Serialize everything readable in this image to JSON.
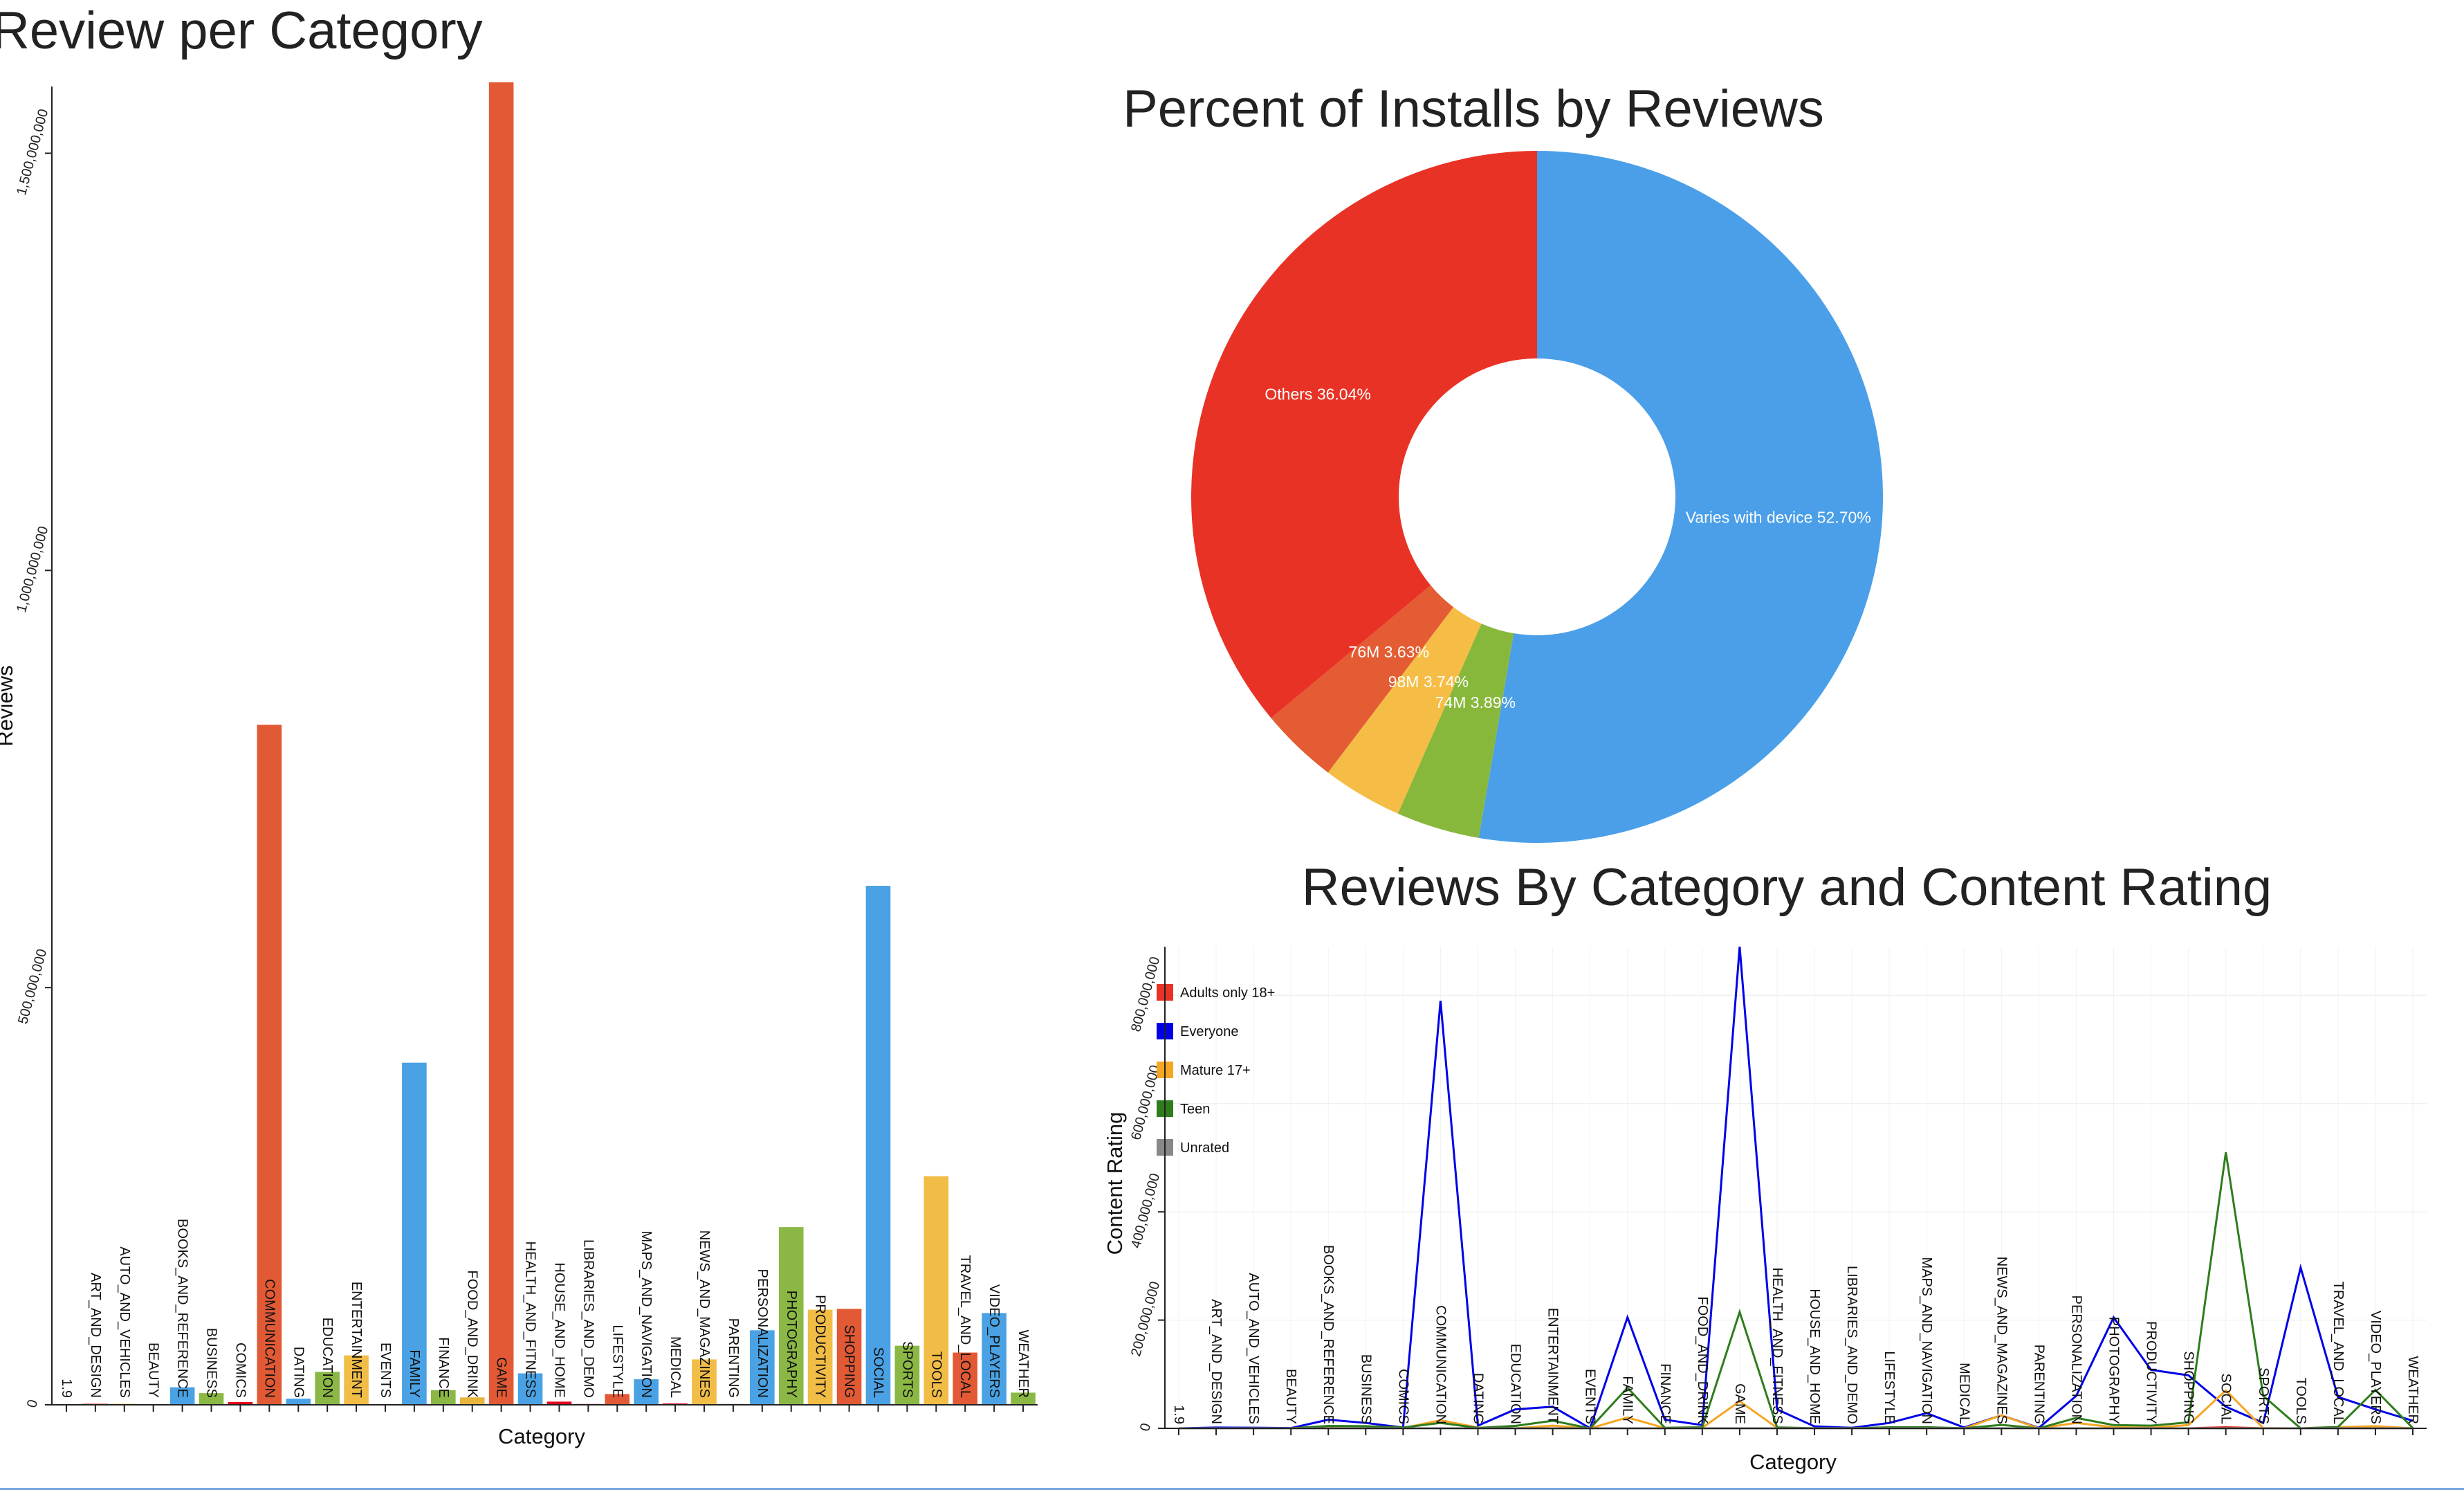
{
  "chart_data": [
    {
      "type": "bar",
      "title": "Review per Category",
      "xlabel": "Category",
      "ylabel": "Reviews",
      "ylim": [
        0,
        1580000000
      ],
      "yticks": [
        0,
        500000000,
        1000000000,
        1500000000
      ],
      "ytick_labels": [
        "0",
        "500,000,000",
        "1,000,000,000",
        "1,500,000,000"
      ],
      "categories": [
        "1.9",
        "ART_AND_DESIGN",
        "AUTO_AND_VEHICLES",
        "BEAUTY",
        "BOOKS_AND_REFERENCE",
        "BUSINESS",
        "COMICS",
        "COMMUNICATION",
        "DATING",
        "EDUCATION",
        "ENTERTAINMENT",
        "EVENTS",
        "FAMILY",
        "FINANCE",
        "FOOD_AND_DRINK",
        "GAME",
        "HEALTH_AND_FITNESS",
        "HOUSE_AND_HOME",
        "LIBRARIES_AND_DEMO",
        "LIFESTYLE",
        "MAPS_AND_NAVIGATION",
        "MEDICAL",
        "NEWS_AND_MAGAZINES",
        "PARENTING",
        "PERSONALIZATION",
        "PHOTOGRAPHY",
        "PRODUCTIVITY",
        "SHOPPING",
        "SOCIAL",
        "SPORTS",
        "TOOLS",
        "TRAVEL_AND_LOCAL",
        "VIDEO_PLAYERS",
        "WEATHER"
      ],
      "values": [
        0,
        1400000,
        1200000,
        400000,
        21000000,
        14000000,
        3400000,
        815000000,
        7300000,
        39500000,
        59200000,
        160000,
        410000000,
        17500000,
        8900000,
        1585000000,
        37700000,
        3800000,
        1000000,
        12900000,
        30600000,
        1600000,
        54400000,
        960000,
        89300000,
        213000000,
        114000000,
        115000000,
        622000000,
        70800000,
        274000000,
        62600000,
        110000000,
        14600000
      ],
      "colors": [
        "#e5001c",
        "#e25a35",
        "#e7b43e",
        "#8bb844",
        "#4aa2e4",
        "#8bb844",
        "#e5001c",
        "#e25a35",
        "#4aa2e4",
        "#8bb844",
        "#f2bd46",
        "#e5001c",
        "#4aa2e4",
        "#8bb844",
        "#e7b43e",
        "#e25a35",
        "#4aa2e4",
        "#e5001c",
        "#e5001c",
        "#e25a35",
        "#4aa2e4",
        "#e5001c",
        "#f2bd46",
        "#e5001c",
        "#4aa2e4",
        "#8bb844",
        "#f2bd46",
        "#e25a35",
        "#4aa2e4",
        "#8bb844",
        "#f2bd46",
        "#e25a35",
        "#4aa2e4",
        "#8bb844"
      ]
    },
    {
      "type": "pie",
      "title": "Percent of Installs by Reviews",
      "donut": true,
      "slices": [
        {
          "label": "Varies with device 52.70%",
          "value": 52.7,
          "color": "#4a9fe8"
        },
        {
          "label": "74M 3.89%",
          "value": 3.89,
          "color": "#88b83b"
        },
        {
          "label": "98M 3.74%",
          "value": 3.74,
          "color": "#f5bd45"
        },
        {
          "label": "76M 3.63%",
          "value": 3.63,
          "color": "#e45c33"
        },
        {
          "label": "Others 36.04%",
          "value": 36.04,
          "color": "#e83225"
        }
      ]
    },
    {
      "type": "line",
      "title": "Reviews By Category and Content Rating",
      "xlabel": "Category",
      "ylabel": "Content Rating",
      "ylim": [
        0,
        890000000
      ],
      "yticks": [
        0,
        200000000,
        400000000,
        600000000,
        800000000
      ],
      "ytick_labels": [
        "0",
        "200,000,000",
        "400,000,000",
        "600,000,000",
        "800,000,000"
      ],
      "grid": true,
      "legend_position": "top-left",
      "categories": [
        "1.9",
        "ART_AND_DESIGN",
        "AUTO_AND_VEHICLES",
        "BEAUTY",
        "BOOKS_AND_REFERENCE",
        "BUSINESS",
        "COMICS",
        "COMMUNICATION",
        "DATING",
        "EDUCATION",
        "ENTERTAINMENT",
        "EVENTS",
        "FAMILY",
        "FINANCE",
        "FOOD_AND_DRINK",
        "GAME",
        "HEALTH_AND_FITNESS",
        "HOUSE_AND_HOME",
        "LIBRARIES_AND_DEMO",
        "LIFESTYLE",
        "MAPS_AND_NAVIGATION",
        "MEDICAL",
        "NEWS_AND_MAGAZINES",
        "PARENTING",
        "PERSONALIZATION",
        "PHOTOGRAPHY",
        "PRODUCTIVITY",
        "SHOPPING",
        "SOCIAL",
        "SPORTS",
        "TOOLS",
        "TRAVEL_AND_LOCAL",
        "VIDEO_PLAYERS",
        "WEATHER"
      ],
      "series": [
        {
          "name": "Adults only 18+",
          "color": "#e83225",
          "values": [
            0,
            0,
            0,
            0,
            0,
            0,
            0,
            0,
            0,
            0,
            0,
            0,
            0,
            0,
            0,
            0,
            0,
            0,
            0,
            0,
            0,
            0,
            0,
            0,
            0,
            0,
            0,
            0,
            2000000,
            0,
            0,
            0,
            0,
            0
          ]
        },
        {
          "name": "Everyone",
          "color": "#0000e8",
          "values": [
            0,
            1400000,
            1100000,
            400000,
            16000000,
            10000000,
            1500000,
            790000000,
            5000000,
            35000000,
            40000000,
            150000,
            205000000,
            16000000,
            6000000,
            890000000,
            35000000,
            3600000,
            900000,
            10000000,
            28000000,
            1500000,
            24000000,
            900000,
            60000000,
            205000000,
            108000000,
            98000000,
            40000000,
            10000000,
            297000000,
            58000000,
            35000000,
            14000000
          ]
        },
        {
          "name": "Mature 17+",
          "color": "#f5a623",
          "values": [
            0,
            0,
            0,
            0,
            500000,
            0,
            400000,
            15000000,
            1500000,
            0,
            5000000,
            0,
            20000000,
            500000,
            1000000,
            50000000,
            1000000,
            0,
            0,
            1000000,
            500000,
            0,
            24000000,
            0,
            10000000,
            2000000,
            1000000,
            6000000,
            70000000,
            500000,
            0,
            2000000,
            4000000,
            0
          ]
        },
        {
          "name": "Teen",
          "color": "#2e7d1c",
          "values": [
            0,
            0,
            100000,
            0,
            4500000,
            4000000,
            1500000,
            10000000,
            800000,
            4500000,
            14000000,
            10000,
            75000000,
            1000000,
            1900000,
            215000000,
            1700000,
            200000,
            100000,
            1900000,
            2100000,
            100000,
            6400000,
            60000,
            19300000,
            6000000,
            5000000,
            11000000,
            510000000,
            60000000,
            0,
            2600000,
            71000000,
            600000
          ]
        },
        {
          "name": "Unrated",
          "color": "#888888",
          "values": [
            0,
            0,
            0,
            0,
            0,
            0,
            0,
            0,
            0,
            0,
            0,
            0,
            0,
            0,
            0,
            0,
            0,
            0,
            0,
            0,
            0,
            0,
            0,
            0,
            0,
            0,
            0,
            0,
            0,
            0,
            0,
            0,
            0,
            0
          ]
        }
      ]
    }
  ]
}
